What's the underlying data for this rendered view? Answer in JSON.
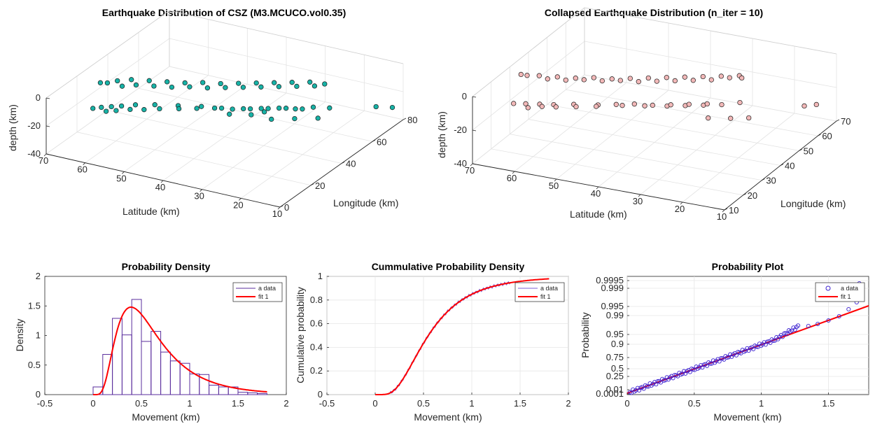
{
  "chart_data": [
    {
      "type": "scatter",
      "projection": "3d",
      "title": "Earthquake Distribution of CSZ (M3.MCUCO.vol0.35)",
      "xlabel": "Longitude (km)",
      "ylabel": "Latitude (km)",
      "zlabel": "depth (km)",
      "xlim": [
        0,
        80
      ],
      "ylim": [
        10,
        70
      ],
      "zlim": [
        -40,
        0
      ],
      "xticks": [
        "0",
        "20",
        "40",
        "60",
        "80"
      ],
      "yticks": [
        "10",
        "20",
        "30",
        "40",
        "50",
        "60",
        "70"
      ],
      "zticks": [
        "-40",
        "-20",
        "0"
      ],
      "marker_color": "#17b2a6",
      "grid": true,
      "points": [
        [
          5,
          60,
          -5
        ],
        [
          8,
          59,
          -6
        ],
        [
          12,
          58,
          -8
        ],
        [
          16,
          57,
          -10
        ],
        [
          20,
          55,
          -11
        ],
        [
          25,
          52,
          -13
        ],
        [
          30,
          48,
          -15
        ],
        [
          35,
          44,
          -17
        ],
        [
          38,
          40,
          -18
        ],
        [
          42,
          36,
          -19
        ],
        [
          46,
          33,
          -20
        ],
        [
          50,
          30,
          -21
        ],
        [
          53,
          27,
          -22
        ],
        [
          57,
          24,
          -22
        ],
        [
          60,
          21,
          -23
        ],
        [
          6,
          57,
          -6
        ],
        [
          10,
          56,
          -8
        ],
        [
          14,
          54,
          -9
        ],
        [
          18,
          52,
          -11
        ],
        [
          23,
          50,
          -13
        ],
        [
          28,
          47,
          -15
        ],
        [
          32,
          44,
          -16
        ],
        [
          36,
          41,
          -17
        ],
        [
          40,
          38,
          -19
        ],
        [
          44,
          35,
          -20
        ],
        [
          48,
          32,
          -21
        ],
        [
          52,
          29,
          -22
        ],
        [
          55,
          26,
          -23
        ],
        [
          22,
          63,
          -2
        ],
        [
          26,
          62,
          -3
        ],
        [
          30,
          60,
          -4
        ],
        [
          34,
          57,
          -6
        ],
        [
          38,
          54,
          -8
        ],
        [
          42,
          51,
          -10
        ],
        [
          46,
          48,
          -11
        ],
        [
          50,
          45,
          -13
        ],
        [
          54,
          42,
          -14
        ],
        [
          58,
          39,
          -15
        ],
        [
          62,
          36,
          -16
        ],
        [
          66,
          33,
          -17
        ],
        [
          70,
          30,
          -18
        ],
        [
          24,
          60,
          -4
        ],
        [
          28,
          58,
          -5
        ],
        [
          32,
          55,
          -7
        ],
        [
          36,
          52,
          -9
        ],
        [
          40,
          49,
          -10
        ],
        [
          44,
          46,
          -12
        ],
        [
          48,
          43,
          -13
        ],
        [
          52,
          40,
          -14
        ],
        [
          56,
          37,
          -15
        ],
        [
          60,
          34,
          -16
        ],
        [
          64,
          31,
          -17
        ],
        [
          20,
          64,
          -1
        ],
        [
          45,
          30,
          -25
        ],
        [
          50,
          26,
          -26
        ],
        [
          48,
          33,
          -24
        ],
        [
          55,
          22,
          -27
        ],
        [
          75,
          15,
          -30
        ],
        [
          78,
          12,
          -31
        ],
        [
          68,
          28,
          -18
        ],
        [
          72,
          27,
          -19
        ],
        [
          38,
          38,
          -21
        ],
        [
          42,
          34,
          -22
        ]
      ]
    },
    {
      "type": "scatter",
      "projection": "3d",
      "title": "Collapsed Earthquake Distribution (n_iter = 10)",
      "xlabel": "Longitude (km)",
      "ylabel": "Latitude (km)",
      "zlabel": "depth (km)",
      "xlim": [
        10,
        70
      ],
      "ylim": [
        10,
        70
      ],
      "zlim": [
        -40,
        0
      ],
      "xticks": [
        "10",
        "20",
        "30",
        "40",
        "50",
        "60",
        "70"
      ],
      "yticks": [
        "10",
        "20",
        "30",
        "40",
        "50",
        "60",
        "70"
      ],
      "zticks": [
        "-40",
        "-20",
        "0"
      ],
      "marker_color": "#f2b8b8",
      "grid": true,
      "points": [
        [
          14,
          62,
          -4
        ],
        [
          16,
          60,
          -5
        ],
        [
          19,
          58,
          -7
        ],
        [
          22,
          56,
          -9
        ],
        [
          26,
          53,
          -11
        ],
        [
          30,
          49,
          -13
        ],
        [
          34,
          45,
          -15
        ],
        [
          37,
          41,
          -16
        ],
        [
          40,
          37,
          -17
        ],
        [
          43,
          34,
          -18
        ],
        [
          46,
          31,
          -19
        ],
        [
          49,
          28,
          -20
        ],
        [
          52,
          25,
          -20
        ],
        [
          15,
          59,
          -6
        ],
        [
          18,
          57,
          -7
        ],
        [
          21,
          55,
          -9
        ],
        [
          25,
          52,
          -11
        ],
        [
          29,
          49,
          -13
        ],
        [
          33,
          46,
          -14
        ],
        [
          36,
          43,
          -15
        ],
        [
          39,
          40,
          -17
        ],
        [
          42,
          37,
          -18
        ],
        [
          45,
          34,
          -19
        ],
        [
          48,
          31,
          -20
        ],
        [
          28,
          65,
          -1
        ],
        [
          30,
          63,
          -2
        ],
        [
          33,
          60,
          -4
        ],
        [
          36,
          57,
          -6
        ],
        [
          39,
          54,
          -7
        ],
        [
          42,
          51,
          -9
        ],
        [
          45,
          48,
          -10
        ],
        [
          48,
          45,
          -11
        ],
        [
          51,
          42,
          -12
        ],
        [
          54,
          39,
          -13
        ],
        [
          57,
          36,
          -14
        ],
        [
          60,
          33,
          -15
        ],
        [
          63,
          30,
          -16
        ],
        [
          30,
          61,
          -3
        ],
        [
          33,
          58,
          -5
        ],
        [
          36,
          55,
          -6
        ],
        [
          39,
          52,
          -8
        ],
        [
          42,
          49,
          -9
        ],
        [
          45,
          46,
          -11
        ],
        [
          48,
          43,
          -12
        ],
        [
          51,
          40,
          -13
        ],
        [
          54,
          37,
          -14
        ],
        [
          57,
          34,
          -15
        ],
        [
          27,
          66,
          0
        ],
        [
          44,
          29,
          -24
        ],
        [
          47,
          25,
          -25
        ],
        [
          50,
          22,
          -26
        ],
        [
          64,
          15,
          -28
        ],
        [
          66,
          13,
          -28
        ],
        [
          60,
          31,
          -15
        ],
        [
          62,
          29,
          -16
        ]
      ]
    },
    {
      "type": "histogram",
      "title": "Probability Density",
      "xlabel": "Movement (km)",
      "ylabel": "Density",
      "xlim": [
        -0.5,
        2
      ],
      "ylim": [
        0,
        2
      ],
      "xticks": [
        "-0.5",
        "0",
        "0.5",
        "1",
        "1.5",
        "2"
      ],
      "yticks": [
        "0",
        "0.5",
        "1",
        "1.5",
        "2"
      ],
      "bin_width": 0.1,
      "bin_edges_start": 0,
      "values": [
        0.13,
        0.68,
        1.29,
        1.01,
        1.61,
        0.9,
        1.07,
        0.72,
        0.57,
        0.53,
        0.35,
        0.34,
        0.16,
        0.13,
        0.13,
        0.04,
        0.03,
        0.02
      ],
      "series": [
        {
          "name": "a data",
          "color": "#5a2d9c"
        },
        {
          "name": "fit 1",
          "color": "#ff0000"
        }
      ],
      "legend": "top-right",
      "grid": false
    },
    {
      "type": "line",
      "title": "Cummulative Probability Density",
      "xlabel": "Movement (km)",
      "ylabel": "Cumulative probability",
      "xlim": [
        -0.5,
        2
      ],
      "ylim": [
        0,
        1
      ],
      "xticks": [
        "-0.5",
        "0",
        "0.5",
        "1",
        "1.5",
        "2"
      ],
      "yticks": [
        "0",
        "0.2",
        "0.4",
        "0.6",
        "0.8",
        "1"
      ],
      "series": [
        {
          "name": "a data",
          "color": "#7b5cd6"
        },
        {
          "name": "fit 1",
          "color": "#ff0000"
        }
      ],
      "legend": "top-right",
      "grid": true
    },
    {
      "type": "scatter",
      "title": "Probability Plot",
      "xlabel": "Movement (km)",
      "ylabel": "Probability",
      "xlim": [
        0,
        1.8
      ],
      "xticks": [
        "0",
        "0.5",
        "1",
        "1.5"
      ],
      "yticks": [
        "0.0001",
        "0.01",
        "0.25",
        "0.5",
        "0.75",
        "0.9",
        "0.95",
        "0.99",
        "0.995",
        "0.999",
        "0.9995"
      ],
      "series": [
        {
          "name": "a data",
          "color": "#3b1fd0",
          "marker": "circle"
        },
        {
          "name": "fit 1",
          "color": "#ff0000"
        }
      ],
      "legend": "top-right",
      "grid": true
    }
  ]
}
